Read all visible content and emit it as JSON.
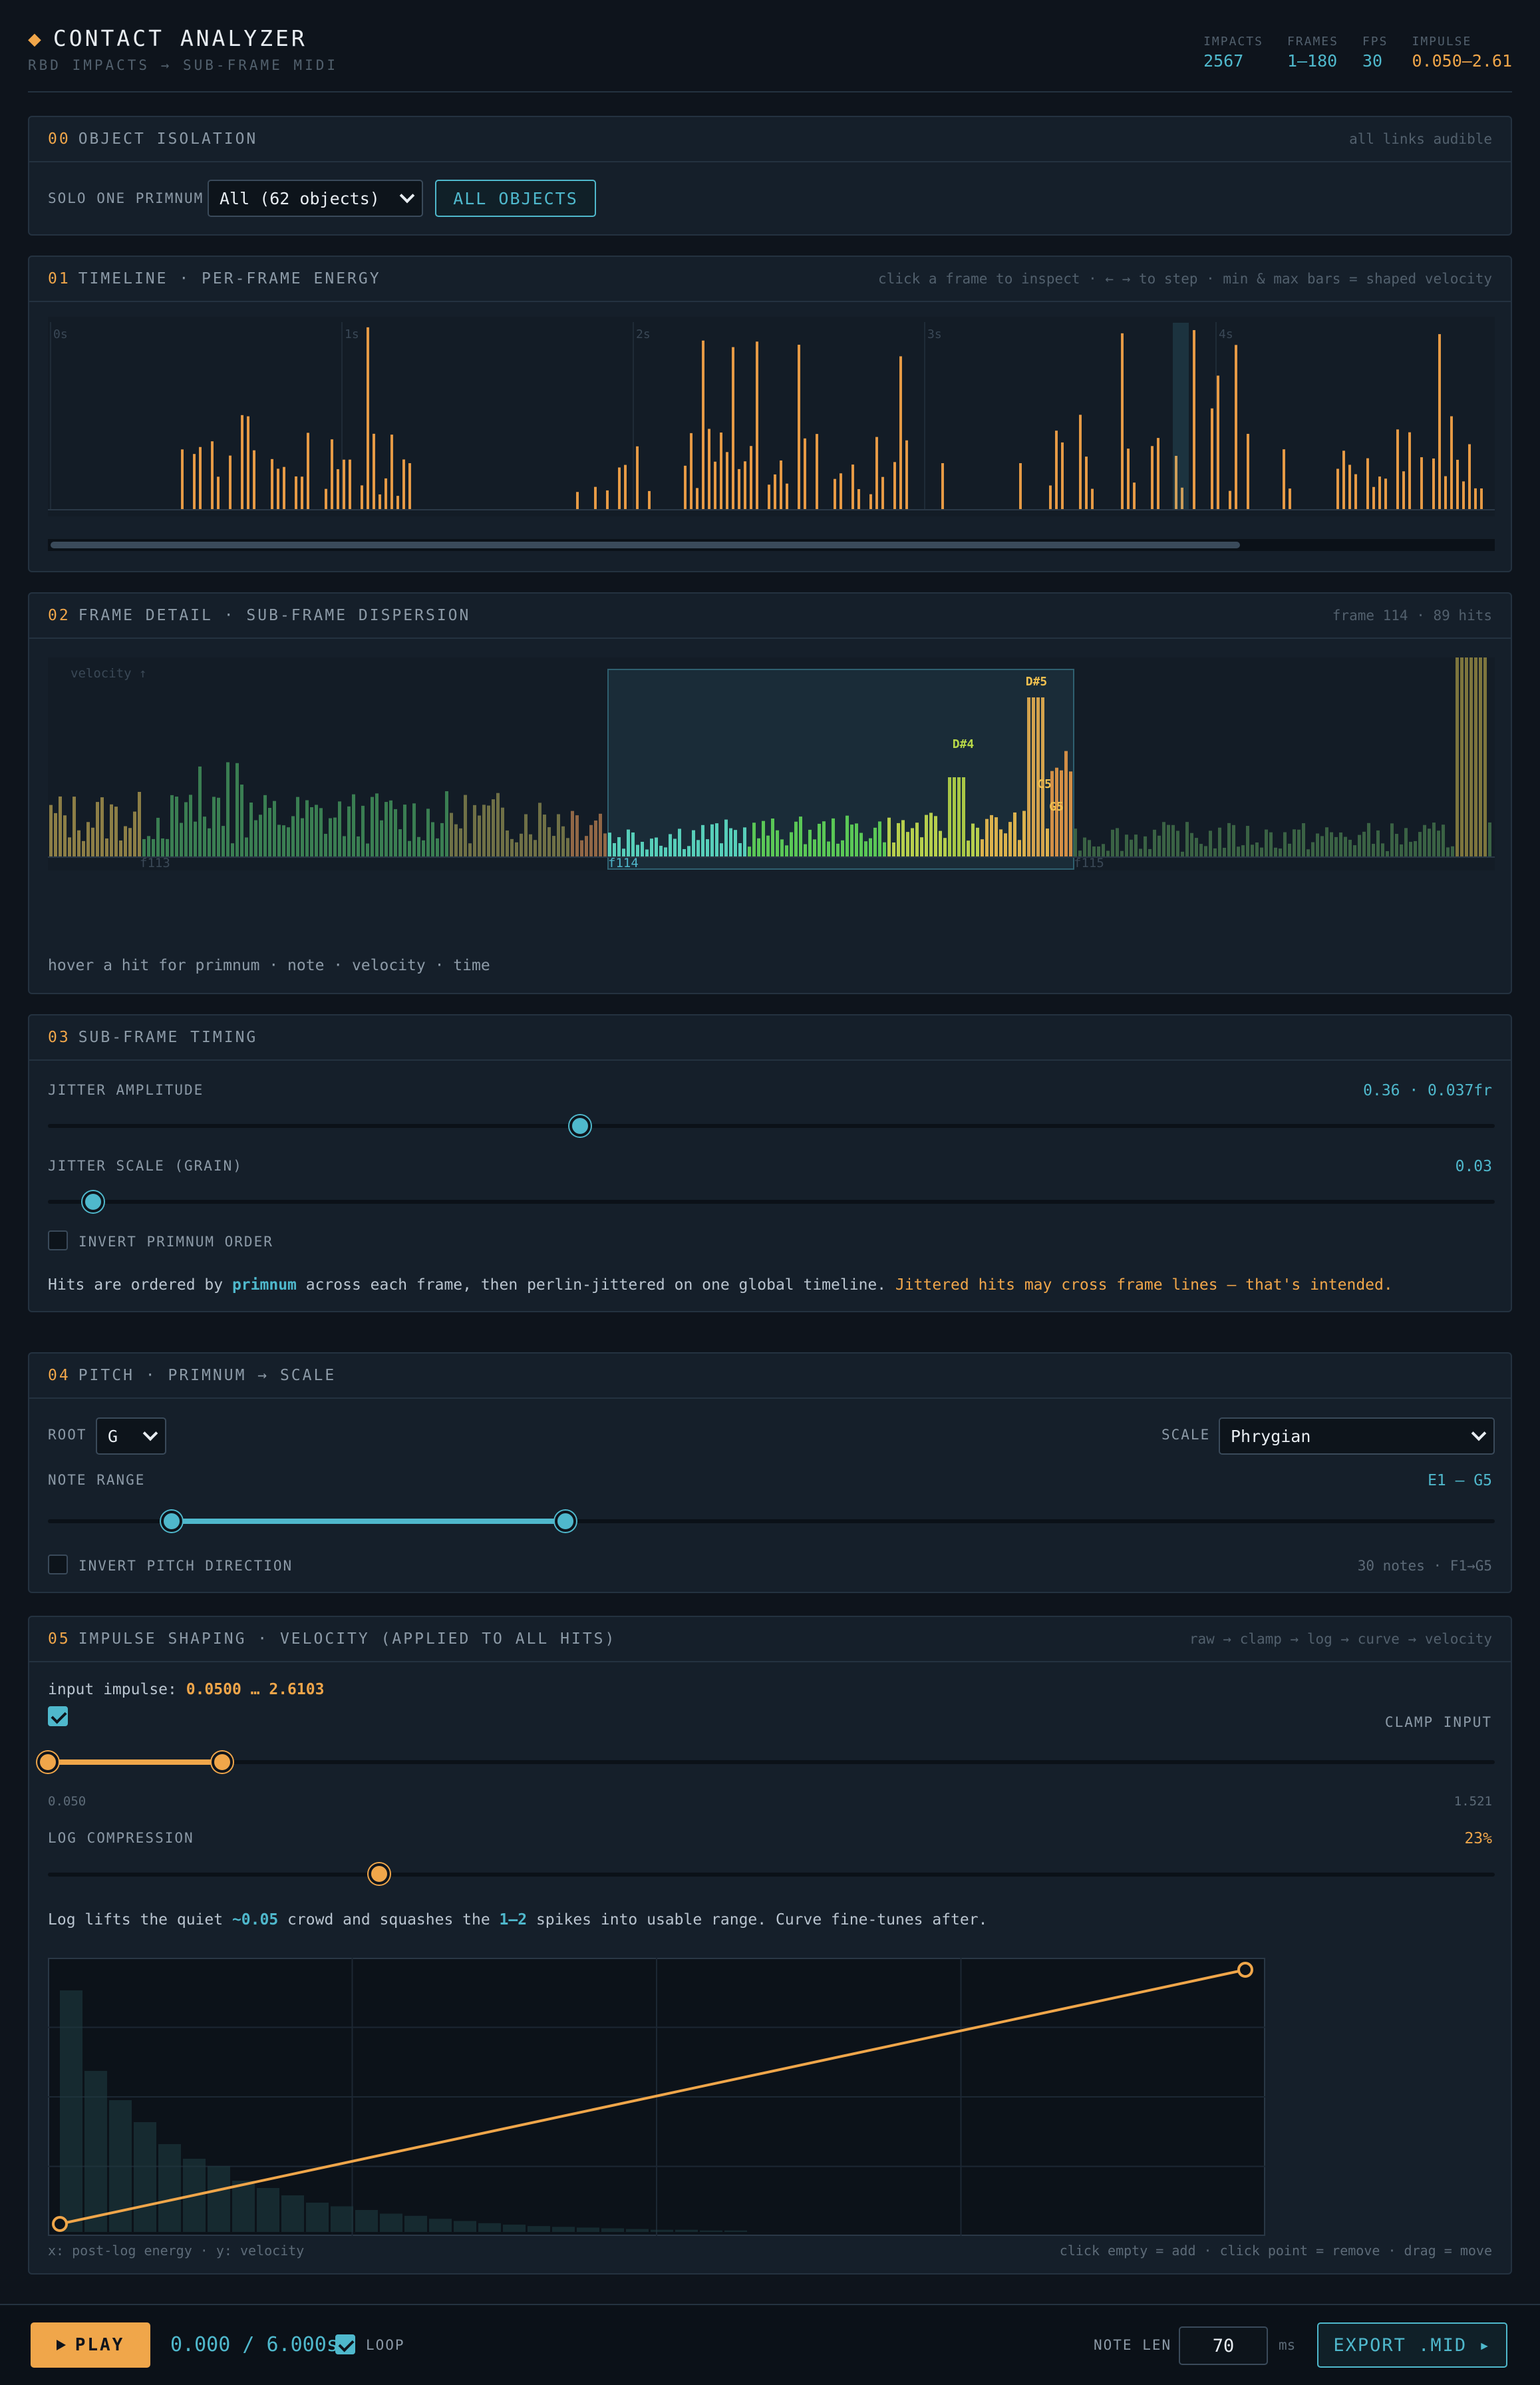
{
  "header": {
    "title": "CONTACT ANALYZER",
    "subtitle": "RBD IMPACTS → SUB-FRAME MIDI",
    "stats": [
      {
        "key": "IMPACTS",
        "value": "2567"
      },
      {
        "key": "FRAMES",
        "value": "1–180"
      },
      {
        "key": "FPS",
        "value": "30"
      },
      {
        "key": "IMPULSE",
        "value": "0.050–2.61"
      }
    ]
  },
  "isolation": {
    "num": "00",
    "title": "OBJECT ISOLATION",
    "right": "all links audible",
    "solo_label": "SOLO ONE PRIMNUM",
    "select_value": "All (62 objects)",
    "button": "ALL OBJECTS"
  },
  "timeline": {
    "num": "01",
    "title": "TIMELINE · PER-FRAME ENERGY",
    "right": "click a frame to inspect · ← → to step · min & max bars = shaped velocity",
    "second_labels": [
      "0s",
      "1s",
      "2s",
      "3s",
      "4s"
    ]
  },
  "detail": {
    "num": "02",
    "title": "FRAME DETAIL · SUB-FRAME DISPERSION",
    "right": "frame 114 · 89 hits",
    "axis_label": "velocity ↑",
    "frame_labels": [
      "f113",
      "f114",
      "f115"
    ],
    "note_labels": [
      "D#5",
      "D#4",
      "C5",
      "G5"
    ],
    "hover_hint": "hover a hit for primnum · note · velocity · time"
  },
  "timing": {
    "num": "03",
    "title": "SUB-FRAME TIMING",
    "jitter_amp_label": "JITTER AMPLITUDE",
    "jitter_amp_value": "0.36 · 0.037fr",
    "jitter_amp_level": 0.36,
    "jitter_scale_label": "JITTER SCALE (GRAIN)",
    "jitter_scale_value": "0.03",
    "jitter_scale_level": 0.03,
    "invert_label": "INVERT PRIMNUM ORDER",
    "desc_a": "Hits are ordered by ",
    "desc_b": "primnum",
    "desc_c": " across each frame, then perlin-jittered on one global timeline. ",
    "desc_d": "Jittered hits may cross frame lines — that's intended."
  },
  "pitch": {
    "num": "04",
    "title": "PITCH · PRIMNUM → SCALE",
    "root_label": "ROOT",
    "root_value": "G",
    "scale_label": "SCALE",
    "scale_value": "Phrygian",
    "range_label": "NOTE RANGE",
    "range_value": "E1 – G5",
    "invert_label": "INVERT PITCH DIRECTION",
    "notes_info": "30 notes · F1→G5"
  },
  "impulse": {
    "num": "05",
    "title": "IMPULSE SHAPING · VELOCITY (APPLIED TO ALL HITS)",
    "right": "raw → clamp → log → curve → velocity",
    "input_label": "input impulse: ",
    "input_value": "0.0500 … 2.6103",
    "clamp_label": "CLAMP INPUT",
    "clamp_min": "0.050",
    "clamp_max": "1.521",
    "log_label": "LOG COMPRESSION",
    "log_value": "23%",
    "log_level": 0.23,
    "desc_a": "Log lifts the quiet ",
    "desc_b": "~0.05",
    "desc_c": " crowd and squashes the ",
    "desc_d": "1–2",
    "desc_e": " spikes into usable range. Curve fine-tunes after.",
    "curve_x_label": "x: post-log energy · y: velocity",
    "curve_hint": "click empty = add · click point = remove · drag = move"
  },
  "footer": {
    "play": "PLAY",
    "time": "0.000 / 6.000s",
    "loop": "LOOP",
    "note_len_label": "NOTE LEN",
    "note_len_value": "70",
    "note_len_unit": "ms",
    "export": "EXPORT .MID ▸"
  },
  "colors": {
    "accent": "#f0a64a",
    "cyan": "#4fb8cc",
    "bg": "#0e141c",
    "panel": "#151f2a"
  }
}
